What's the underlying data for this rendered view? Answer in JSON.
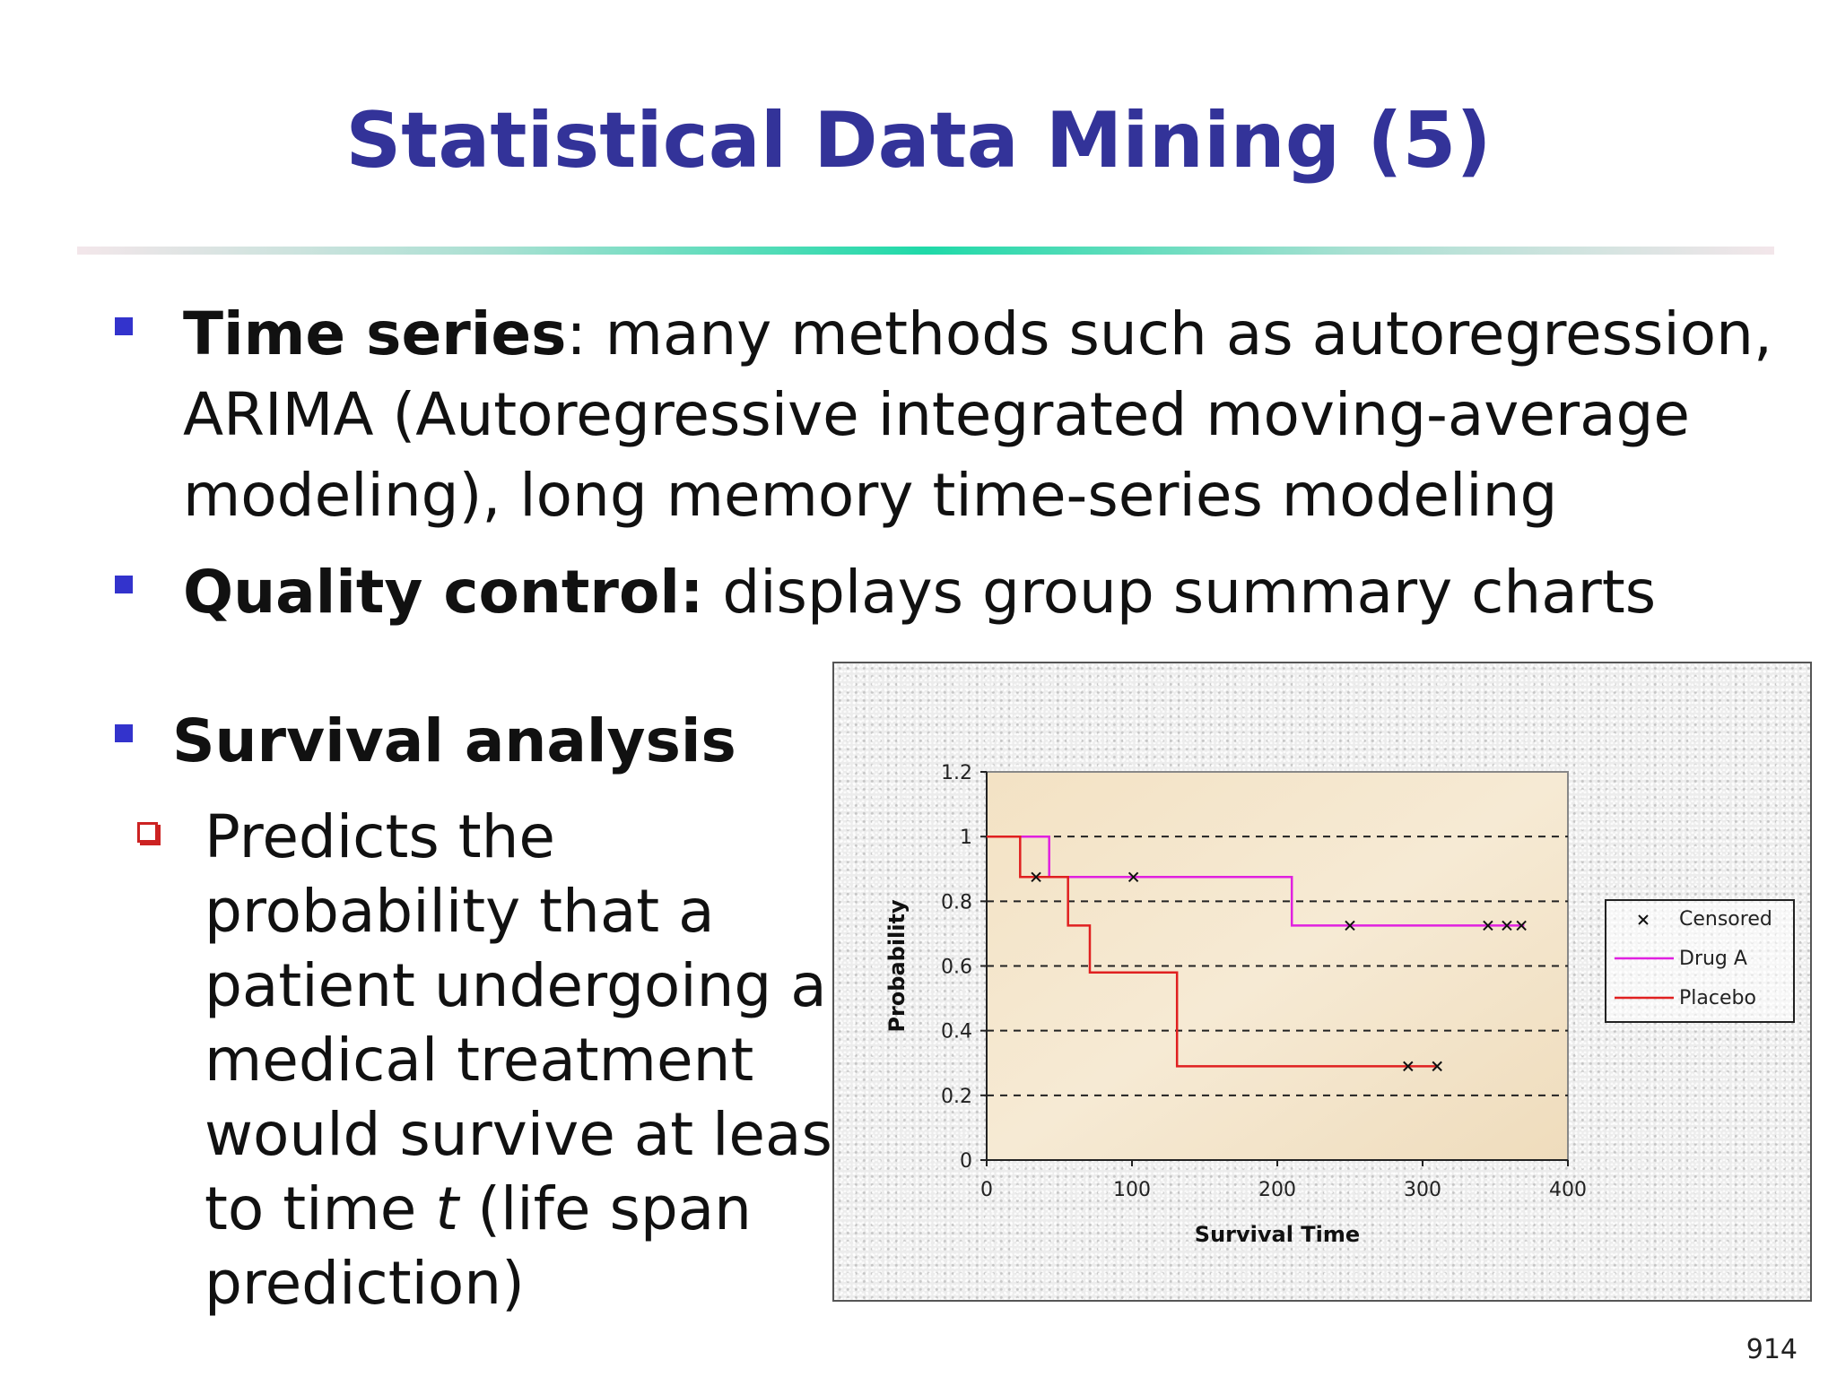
{
  "slide": {
    "title": "Statistical Data Mining (5)",
    "bullets": [
      {
        "head": "Time series",
        "sep": ":",
        "lines": [
          "many methods such as autoregression,",
          "ARIMA (Autoregressive integrated moving-average",
          "modeling), long memory time-series modeling"
        ]
      },
      {
        "head": "Quality control:",
        "sep": "",
        "lines": [
          "displays group summary charts"
        ]
      }
    ],
    "survival_head": "Survival analysis",
    "survival_sub": [
      "Predicts the",
      "probability that a",
      "patient undergoing a",
      "medical treatment",
      "would survive at least",
      "to time ",
      "t",
      " (life span",
      "prediction)"
    ],
    "page_number": "914"
  },
  "chart_data": {
    "type": "line",
    "xlabel": "Survival Time",
    "ylabel": "Probability",
    "xlim": [
      0,
      400
    ],
    "ylim": [
      0,
      1.2
    ],
    "xticks": [
      "0",
      "100",
      "200",
      "300",
      "400"
    ],
    "yticks": [
      "0",
      "0.2",
      "0.4",
      "0.6",
      "0.8",
      "1",
      "1.2"
    ],
    "grid": "dashed horizontal",
    "legend_position": "right",
    "legend": [
      "Censored",
      "Drug A",
      "Placebo"
    ],
    "series": [
      {
        "name": "Drug A",
        "color": "#e020e0",
        "step": [
          [
            0,
            1
          ],
          [
            43,
            1
          ],
          [
            43,
            0.875
          ],
          [
            210,
            0.875
          ],
          [
            210,
            0.725
          ],
          [
            370,
            0.725
          ]
        ]
      },
      {
        "name": "Placebo",
        "color": "#e02020",
        "step": [
          [
            0,
            1
          ],
          [
            23,
            1
          ],
          [
            23,
            0.875
          ],
          [
            56,
            0.875
          ],
          [
            56,
            0.725
          ],
          [
            71,
            0.725
          ],
          [
            71,
            0.58
          ],
          [
            131,
            0.58
          ],
          [
            131,
            0.29
          ],
          [
            310,
            0.29
          ]
        ]
      }
    ],
    "censored": [
      [
        34,
        0.875
      ],
      [
        101,
        0.875
      ],
      [
        250,
        0.725
      ],
      [
        345,
        0.725
      ],
      [
        358,
        0.725
      ],
      [
        368,
        0.725
      ],
      [
        290,
        0.29
      ],
      [
        310,
        0.29
      ]
    ]
  }
}
